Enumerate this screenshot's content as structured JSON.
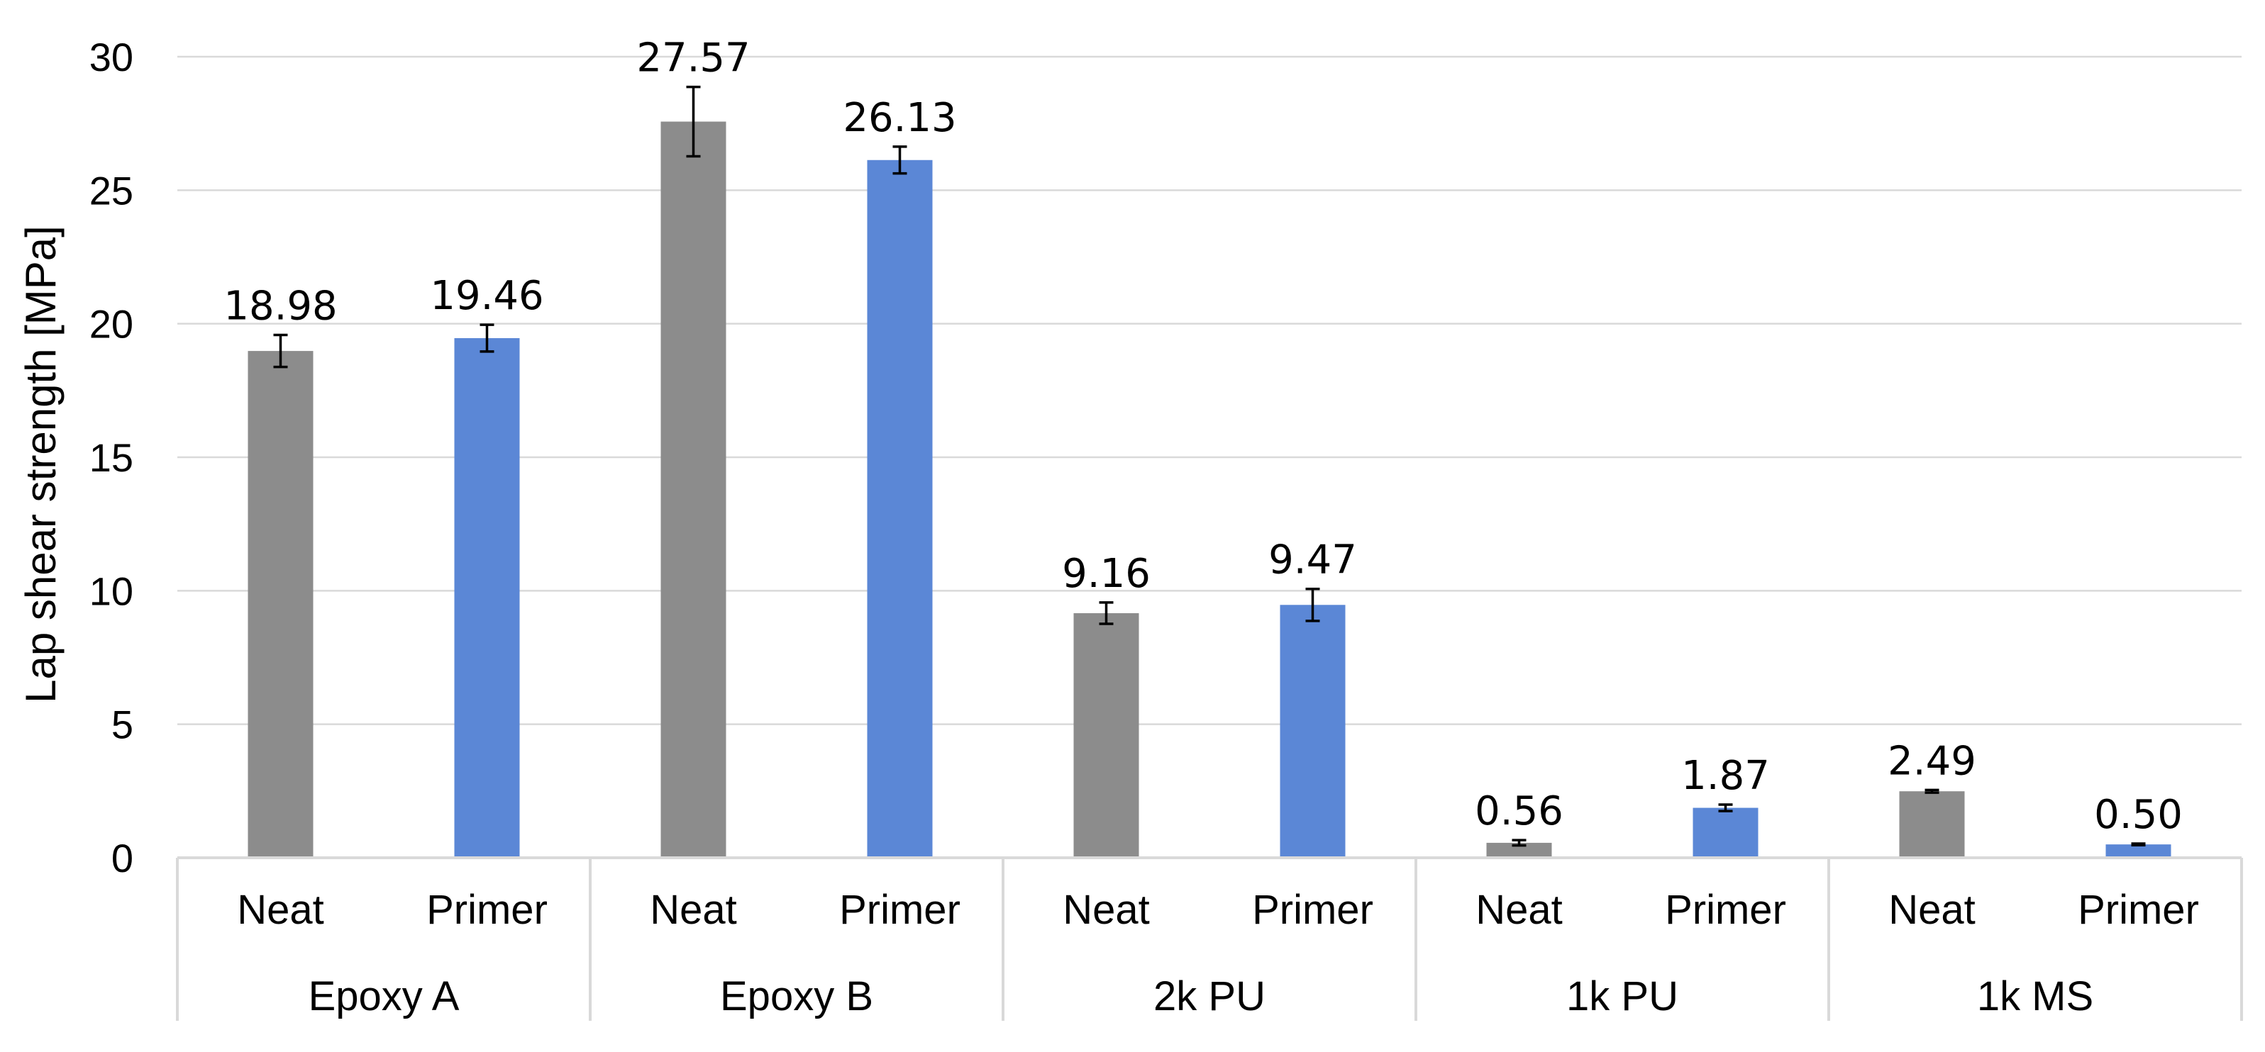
{
  "chart_data": {
    "type": "bar",
    "ylabel": "Lap shear strength [MPa]",
    "ylim": [
      0,
      30
    ],
    "yticks": [
      0,
      5,
      10,
      15,
      20,
      25,
      30
    ],
    "grid": true,
    "groups": [
      "Epoxy A",
      "Epoxy B",
      "2k PU",
      "1k PU",
      "1k MS"
    ],
    "categories": [
      "Neat",
      "Primer"
    ],
    "colors": {
      "Neat": "#8c8c8c",
      "Primer": "#5b87d6"
    },
    "bars": [
      {
        "group": "Epoxy A",
        "category": "Neat",
        "value": 18.98,
        "label": "18.98",
        "error": 0.6
      },
      {
        "group": "Epoxy A",
        "category": "Primer",
        "value": 19.46,
        "label": "19.46",
        "error": 0.5
      },
      {
        "group": "Epoxy B",
        "category": "Neat",
        "value": 27.57,
        "label": "27.57",
        "error": 1.3
      },
      {
        "group": "Epoxy B",
        "category": "Primer",
        "value": 26.13,
        "label": "26.13",
        "error": 0.5
      },
      {
        "group": "2k PU",
        "category": "Neat",
        "value": 9.16,
        "label": "9.16",
        "error": 0.4
      },
      {
        "group": "2k PU",
        "category": "Primer",
        "value": 9.47,
        "label": "9.47",
        "error": 0.6
      },
      {
        "group": "1k PU",
        "category": "Neat",
        "value": 0.56,
        "label": "0.56",
        "error": 0.1
      },
      {
        "group": "1k PU",
        "category": "Primer",
        "value": 1.87,
        "label": "1.87",
        "error": 0.12
      },
      {
        "group": "1k MS",
        "category": "Neat",
        "value": 2.49,
        "label": "2.49",
        "error": 0.05
      },
      {
        "group": "1k MS",
        "category": "Primer",
        "value": 0.5,
        "label": "0.50",
        "error": 0.03
      }
    ]
  }
}
